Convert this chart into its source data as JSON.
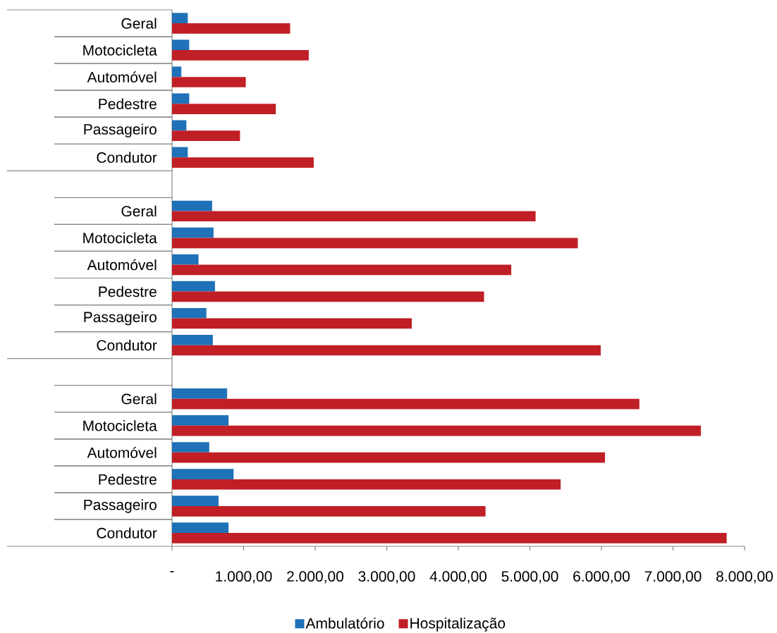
{
  "chart_data": {
    "type": "bar",
    "orientation": "horizontal",
    "legend": "bottom",
    "categories": [
      "Geral",
      "Motocicleta",
      "Automóvel",
      "Pedestre",
      "Passageiro",
      "Condutor",
      null,
      "Geral",
      "Motocicleta",
      "Automóvel",
      "Pedestre",
      "Passageiro",
      "Condutor",
      null,
      "Geral",
      "Motocicleta",
      "Automóvel",
      "Pedestre",
      "Passageiro",
      "Condutor"
    ],
    "series": [
      {
        "name": "Ambulatório",
        "color": "#1f71b8",
        "values": [
          220,
          240,
          130,
          240,
          200,
          220,
          null,
          560,
          580,
          370,
          600,
          480,
          570,
          null,
          770,
          790,
          520,
          860,
          650,
          790
        ]
      },
      {
        "name": "Hospitalização",
        "color": "#c01f26",
        "values": [
          1650,
          1910,
          1030,
          1450,
          950,
          1980,
          null,
          5080,
          5670,
          4740,
          4360,
          3350,
          5990,
          null,
          6530,
          7390,
          6050,
          5430,
          4380,
          7750
        ]
      }
    ],
    "xlim": [
      0,
      8000
    ],
    "xticks": [
      {
        "value": 0,
        "label": "-"
      },
      {
        "value": 1000,
        "label": "1.000,00"
      },
      {
        "value": 2000,
        "label": "2.000,00"
      },
      {
        "value": 3000,
        "label": "3.000,00"
      },
      {
        "value": 4000,
        "label": "4.000,00"
      },
      {
        "value": 5000,
        "label": "5.000,00"
      },
      {
        "value": 6000,
        "label": "6.000,00"
      },
      {
        "value": 7000,
        "label": "7.000,00"
      },
      {
        "value": 8000,
        "label": "8.000,00"
      }
    ]
  }
}
